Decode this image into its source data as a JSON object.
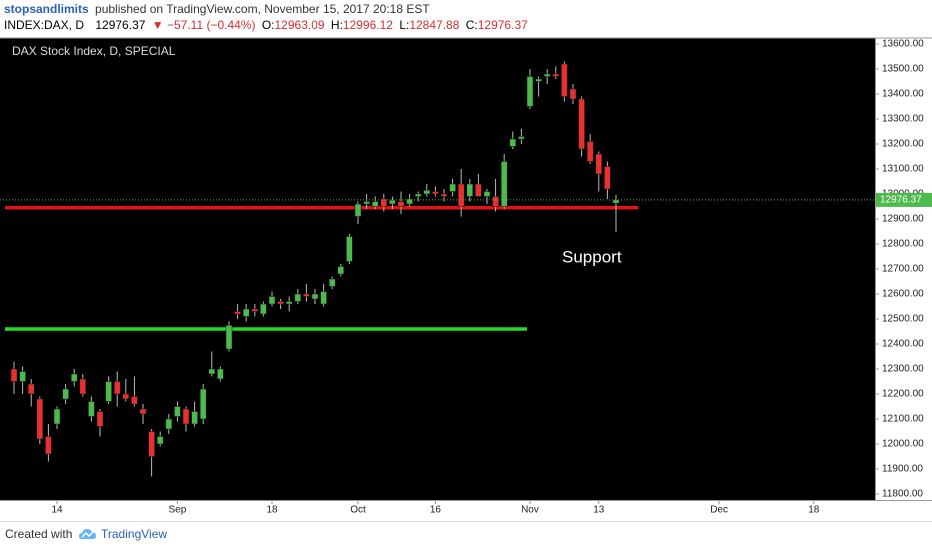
{
  "header": {
    "author": "stopsandlimits",
    "published": "published on TradingView.com, November 15, 2017 20:18 EST",
    "symbol": "INDEX:DAX, D",
    "change": "▼ −57.11 (−0.44%)",
    "open_label": "O:",
    "high_label": "H:",
    "low_label": "L:",
    "close_label": "C:"
  },
  "chart_data": {
    "type": "candlestick",
    "title": "DAX Stock Index, D, SPECIAL",
    "annotations": [
      "Support"
    ],
    "x": [
      0,
      1,
      2,
      3,
      4,
      5,
      6,
      7,
      8,
      9,
      10,
      11,
      12,
      13,
      14,
      15,
      16,
      17,
      18,
      19,
      20,
      21,
      22,
      23,
      24,
      25,
      26,
      27,
      28,
      29,
      30,
      31,
      32,
      33,
      34,
      35,
      36,
      37,
      38,
      39,
      40,
      41,
      42,
      43,
      44,
      45,
      46,
      47,
      48,
      49,
      50,
      51,
      52,
      53,
      54,
      55,
      56,
      57,
      58,
      59,
      60,
      61,
      62,
      63,
      64,
      65,
      66,
      67,
      68,
      69,
      70
    ],
    "open": [
      12300,
      12250,
      12240,
      12180,
      12030,
      12080,
      12180,
      12250,
      12260,
      12110,
      12130,
      12170,
      12250,
      12200,
      12190,
      12140,
      12050,
      12000,
      12060,
      12110,
      12140,
      12080,
      12100,
      12280,
      12260,
      12380,
      12530,
      12510,
      12540,
      12520,
      12560,
      12570,
      12560,
      12570,
      12600,
      12580,
      12560,
      12630,
      12680,
      12730,
      12910,
      12960,
      12950,
      12980,
      12960,
      12970,
      12960,
      12990,
      13000,
      13010,
      13000,
      13010,
      13040,
      12990,
      13040,
      12990,
      12990,
      12950,
      13190,
      13220,
      13350,
      13450,
      13470,
      13480,
      13520,
      13420,
      13380,
      13210,
      13160,
      13110,
      12963.09
    ],
    "high": [
      12330,
      12310,
      12260,
      12190,
      12080,
      12150,
      12240,
      12300,
      12280,
      12190,
      12140,
      12270,
      12290,
      12260,
      12270,
      12160,
      12060,
      12050,
      12120,
      12170,
      12150,
      12170,
      12240,
      12370,
      12310,
      12490,
      12560,
      12560,
      12560,
      12570,
      12610,
      12580,
      12590,
      12620,
      12640,
      12620,
      12640,
      12670,
      12720,
      12840,
      12970,
      13000,
      12990,
      13000,
      12990,
      13010,
      13000,
      13010,
      13040,
      13030,
      13020,
      13060,
      13100,
      13060,
      13080,
      13020,
      13060,
      13160,
      13250,
      13260,
      13500,
      13470,
      13500,
      13510,
      13530,
      13440,
      13390,
      13240,
      13170,
      13130,
      12996.12
    ],
    "low": [
      12200,
      12200,
      12150,
      12000,
      11930,
      12060,
      12160,
      12230,
      12190,
      12090,
      12030,
      12160,
      12150,
      12170,
      12150,
      12080,
      11870,
      11990,
      12040,
      12090,
      12050,
      12070,
      12080,
      12270,
      12250,
      12370,
      12500,
      12490,
      12510,
      12510,
      12550,
      12540,
      12530,
      12560,
      12570,
      12560,
      12550,
      12620,
      12670,
      12720,
      12880,
      12940,
      12940,
      12930,
      12940,
      12920,
      12950,
      12970,
      12990,
      12990,
      12970,
      12990,
      12910,
      12970,
      12990,
      12960,
      12930,
      12940,
      13180,
      13200,
      13340,
      13390,
      13440,
      13460,
      13370,
      13360,
      13150,
      13120,
      13010,
      12980,
      12847.88
    ],
    "close": [
      12250,
      12290,
      12200,
      12020,
      11960,
      12140,
      12220,
      12280,
      12200,
      12170,
      12070,
      12250,
      12200,
      12180,
      12160,
      12120,
      11950,
      12030,
      12100,
      12150,
      12080,
      12130,
      12220,
      12300,
      12300,
      12475,
      12520,
      12540,
      12530,
      12560,
      12590,
      12560,
      12570,
      12600,
      12590,
      12600,
      12610,
      12660,
      12710,
      12830,
      12960,
      12970,
      12970,
      12950,
      12975,
      12950,
      12980,
      13000,
      13015,
      13000,
      12990,
      13040,
      12950,
      13040,
      12990,
      13010,
      12950,
      13130,
      13220,
      13230,
      13470,
      13460,
      13480,
      13470,
      13390,
      13380,
      13180,
      13130,
      13080,
      13020,
      12976.37
    ],
    "up_color": "#4cbb4c",
    "down_color": "#e8312f",
    "hlines": [
      {
        "value": 12945,
        "color": "#e01414"
      },
      {
        "value": 12460,
        "color": "#22dd22"
      }
    ],
    "xlim": [
      -1.63,
      100.12
    ],
    "xticks": [
      {
        "value": 5,
        "label": "14"
      },
      {
        "value": 19,
        "label": "Sep"
      },
      {
        "value": 30,
        "label": "18"
      },
      {
        "value": 40,
        "label": "Oct"
      },
      {
        "value": 49,
        "label": "16"
      },
      {
        "value": 60,
        "label": "Nov"
      },
      {
        "value": 68,
        "label": "13"
      },
      {
        "value": 82,
        "label": "Dec"
      },
      {
        "value": 93,
        "label": "18"
      }
    ],
    "ylim": [
      11776,
      13624
    ],
    "yticks": [
      {
        "value": 11800,
        "label": "11800.00"
      },
      {
        "value": 11900,
        "label": "11900.00"
      },
      {
        "value": 12000,
        "label": "12000.00"
      },
      {
        "value": 12100,
        "label": "12100.00"
      },
      {
        "value": 12200,
        "label": "12200.00"
      },
      {
        "value": 12300,
        "label": "12300.00"
      },
      {
        "value": 12400,
        "label": "12400.00"
      },
      {
        "value": 12500,
        "label": "12500.00"
      },
      {
        "value": 12600,
        "label": "12600.00"
      },
      {
        "value": 12700,
        "label": "12700.00"
      },
      {
        "value": 12800,
        "label": "12800.00"
      },
      {
        "value": 12900,
        "label": "12900.00"
      },
      {
        "value": 13000,
        "label": "13000.00"
      },
      {
        "value": 13100,
        "label": "13100.00"
      },
      {
        "value": 13200,
        "label": "13200.00"
      },
      {
        "value": 13300,
        "label": "13300.00"
      },
      {
        "value": 13400,
        "label": "13400.00"
      },
      {
        "value": 13500,
        "label": "13500.00"
      },
      {
        "value": 13600,
        "label": "13600.00"
      }
    ],
    "grid": false
  },
  "footer": {
    "created": "Created with",
    "brand": "TradingView"
  }
}
